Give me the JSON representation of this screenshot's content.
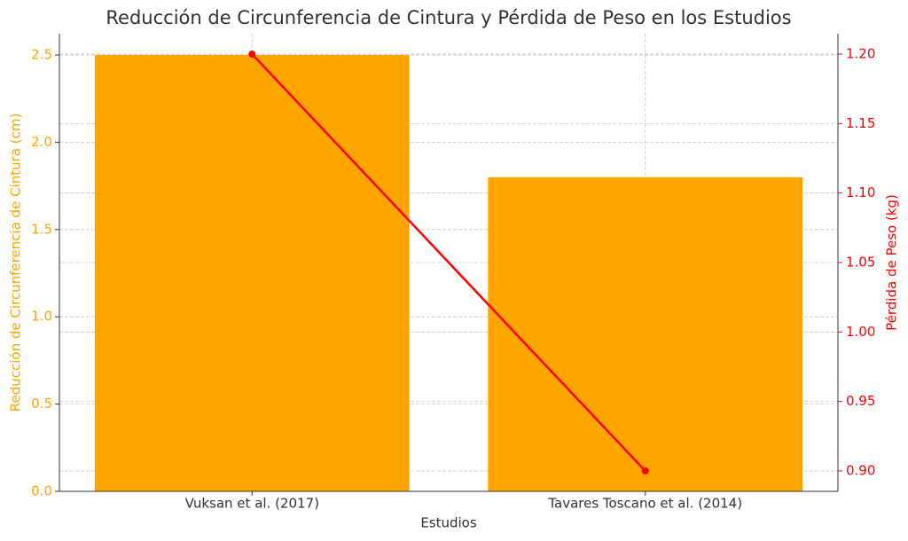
{
  "chart_data": {
    "type": "bar",
    "title": "Reducción de Circunferencia de Cintura y Pérdida de Peso en los Estudios",
    "x_label": "Estudios",
    "y_label": "Reducción de Circunferencia de Cintura (cm)",
    "y2_label": "Pérdida de Peso (kg)",
    "categories": [
      "Vuksan et al. (2017)",
      "Tavares Toscano et al. (2014)"
    ],
    "series": [
      {
        "name": "Reducción de Circunferencia de Cintura (cm)",
        "type": "bar",
        "color": "#ffa500",
        "values": [
          2.5,
          1.8
        ]
      },
      {
        "name": "Pérdida de Peso (kg)",
        "type": "line",
        "color": "#ff0000",
        "axis": "y2",
        "values": [
          1.2,
          0.9
        ]
      }
    ],
    "ylim": [
      0,
      2.622
    ],
    "yticks": [
      {
        "value": 0,
        "label": "0.0"
      },
      {
        "value": 0.5,
        "label": "0.5"
      },
      {
        "value": 1,
        "label": "1.0"
      },
      {
        "value": 1.5,
        "label": "1.5"
      },
      {
        "value": 2,
        "label": "2.0"
      },
      {
        "value": 2.5,
        "label": "2.5"
      }
    ],
    "y2lim": [
      0.8853,
      1.2147
    ],
    "y2ticks": [
      {
        "value": 0.9,
        "label": "0.90"
      },
      {
        "value": 0.95,
        "label": "0.95"
      },
      {
        "value": 1.0,
        "label": "1.00"
      },
      {
        "value": 1.05,
        "label": "1.05"
      },
      {
        "value": 1.1,
        "label": "1.10"
      },
      {
        "value": 1.15,
        "label": "1.15"
      },
      {
        "value": 1.2,
        "label": "1.20"
      }
    ],
    "grid": true
  }
}
